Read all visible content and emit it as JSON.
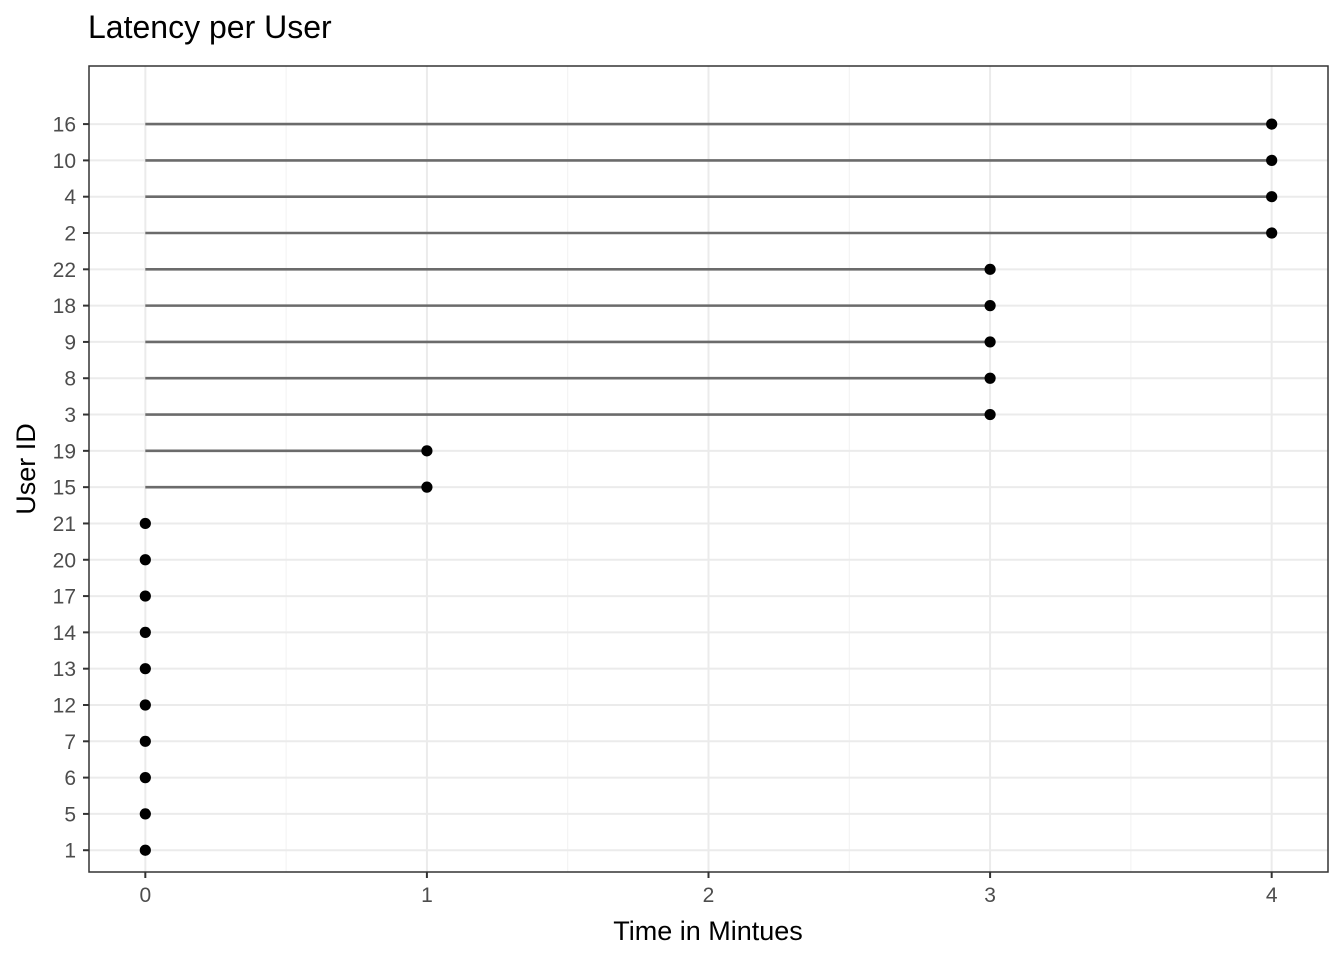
{
  "chart_data": {
    "type": "lollipop",
    "title": "Latency per User",
    "xlabel": "Time in Mintues",
    "ylabel": "User ID",
    "xlim": [
      -0.2,
      4.2
    ],
    "x_ticks": [
      0,
      1,
      2,
      3,
      4
    ],
    "x_tick_labels": [
      "0",
      "1",
      "2",
      "3",
      "4"
    ],
    "grid": true,
    "categories": [
      "1",
      "5",
      "6",
      "7",
      "12",
      "13",
      "14",
      "17",
      "20",
      "21",
      "15",
      "19",
      "3",
      "8",
      "9",
      "18",
      "22",
      "2",
      "4",
      "10",
      "16"
    ],
    "values": [
      0,
      0,
      0,
      0,
      0,
      0,
      0,
      0,
      0,
      0,
      1,
      1,
      3,
      3,
      3,
      3,
      3,
      4,
      4,
      4,
      4
    ],
    "colors": {
      "segment": "#6b6b6b",
      "point": "#000000",
      "grid": "#ebebeb",
      "border": "#333333"
    }
  }
}
